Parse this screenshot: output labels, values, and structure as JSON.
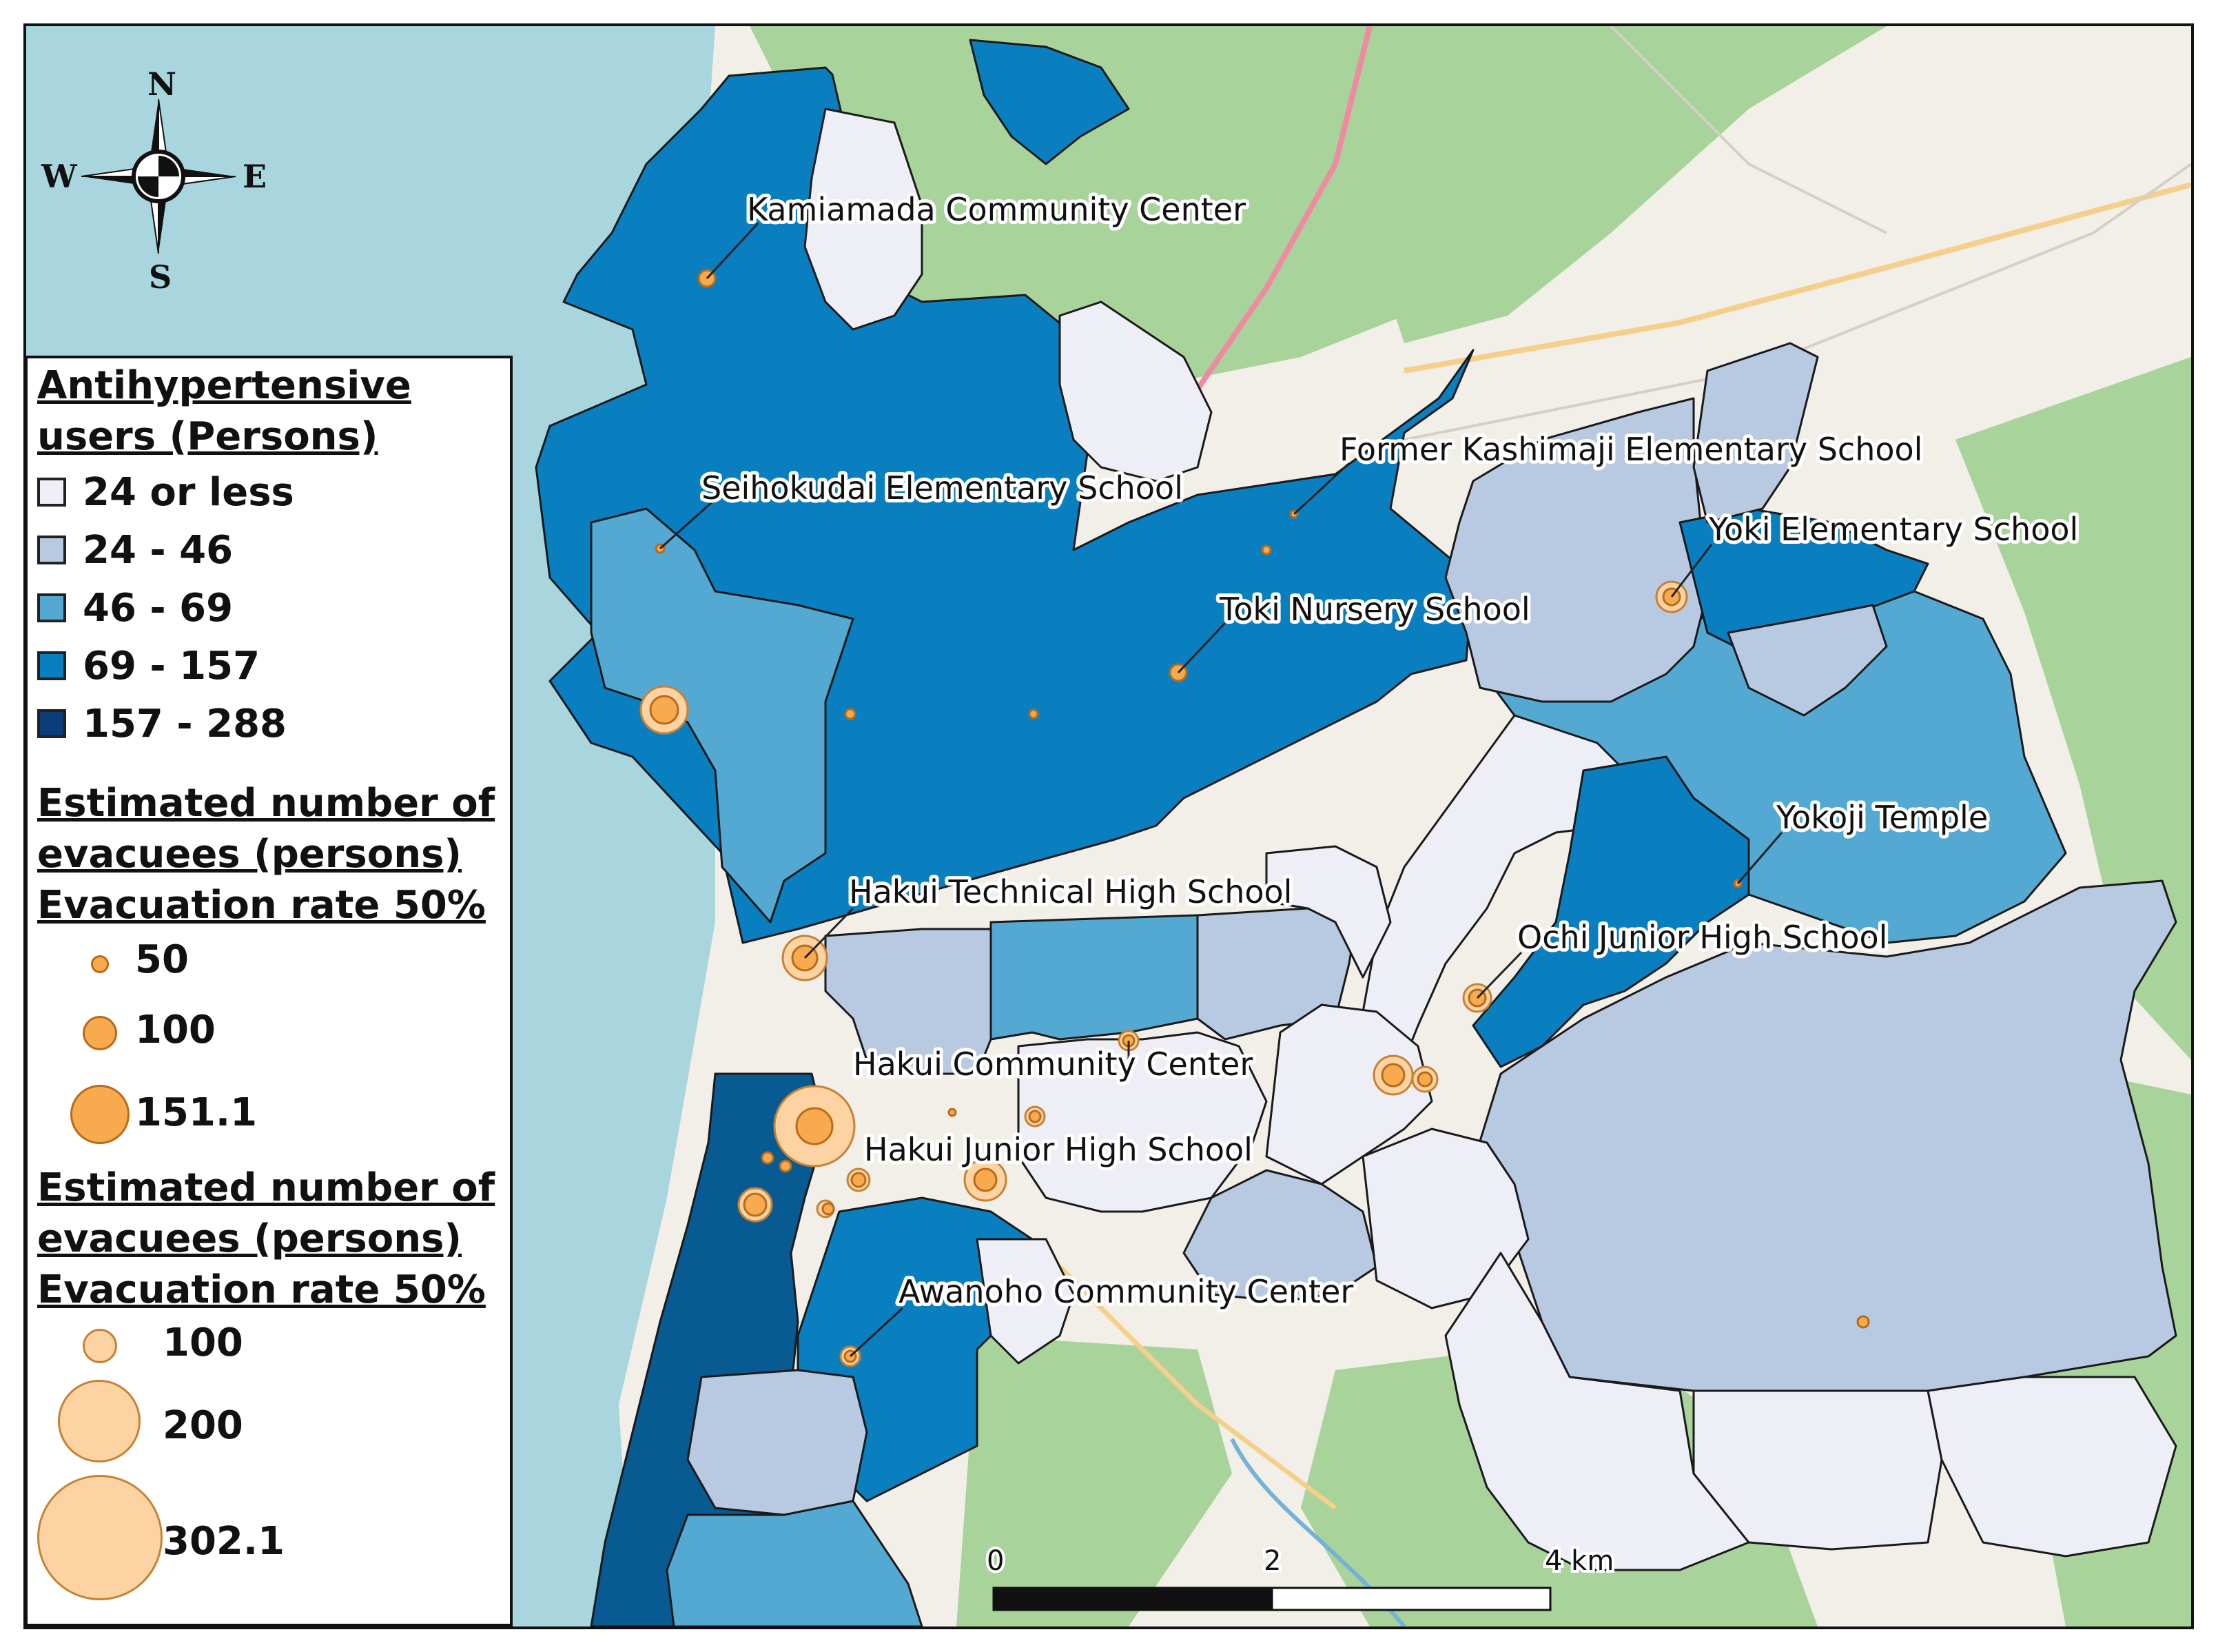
{
  "map": {
    "colors": {
      "sea": "#a9d6de",
      "land": "#f2efe9",
      "forest": "#a8d39a",
      "class_1": "#eeeef6",
      "class_2": "#b8c9e2",
      "class_3": "#54a9d2",
      "class_4": "#0a7fc0",
      "class_5": "#0b3d7a",
      "darkzone": "#075a92",
      "orange": "#f7aa4e",
      "peach": "#fdd3a3"
    },
    "compass": {
      "n": "N",
      "s": "S",
      "e": "E",
      "w": "W"
    },
    "labels": [
      "Kamiamada Community Center",
      "Seihokudai Elementary School",
      "Former Kashimaji Elementary School",
      "Yoki Elementary School",
      "Toki Nursery School",
      "Yokoji Temple",
      "Hakui Technical High School",
      "Ochi Junior High School",
      "Hakui Community Center",
      "Hakui Junior High School",
      "Awanoho Community Center"
    ],
    "scale": {
      "ticks": [
        "0",
        "2",
        "4 km"
      ]
    }
  },
  "legend": {
    "choropleth": {
      "title_line1": "Antihypertensive",
      "title_line2": "users (Persons)",
      "classes": [
        "24 or less",
        "24 - 46",
        "46 - 69",
        "69 - 157",
        "157 - 288"
      ]
    },
    "small": {
      "title_line1": "Estimated number of",
      "title_line2": "evacuees (persons)",
      "title_line3": "Evacuation rate 50%",
      "values": [
        "50",
        "100",
        "151.1"
      ]
    },
    "large": {
      "title_line1": "Estimated number of",
      "title_line2": "evacuees (persons)",
      "title_line3": "Evacuation rate 50%",
      "values": [
        "100",
        "200",
        "302.1"
      ]
    }
  }
}
